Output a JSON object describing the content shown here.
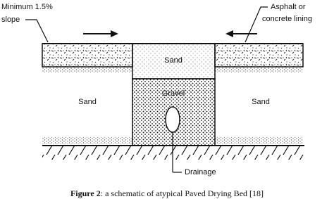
{
  "slope_label": {
    "line1": "Minimum 1.5%",
    "line2": "slope"
  },
  "lining_label": {
    "line1": "Asphalt or",
    "line2": "concrete lining"
  },
  "layers": {
    "sand_left": "Sand",
    "sand_top": "Sand",
    "gravel": "Gravel",
    "sand_right": "Sand"
  },
  "drainage_label": "Drainage",
  "caption": {
    "figure": "Figure 2",
    "text": ": a schematic of atypical Paved Drying Bed [18]"
  }
}
